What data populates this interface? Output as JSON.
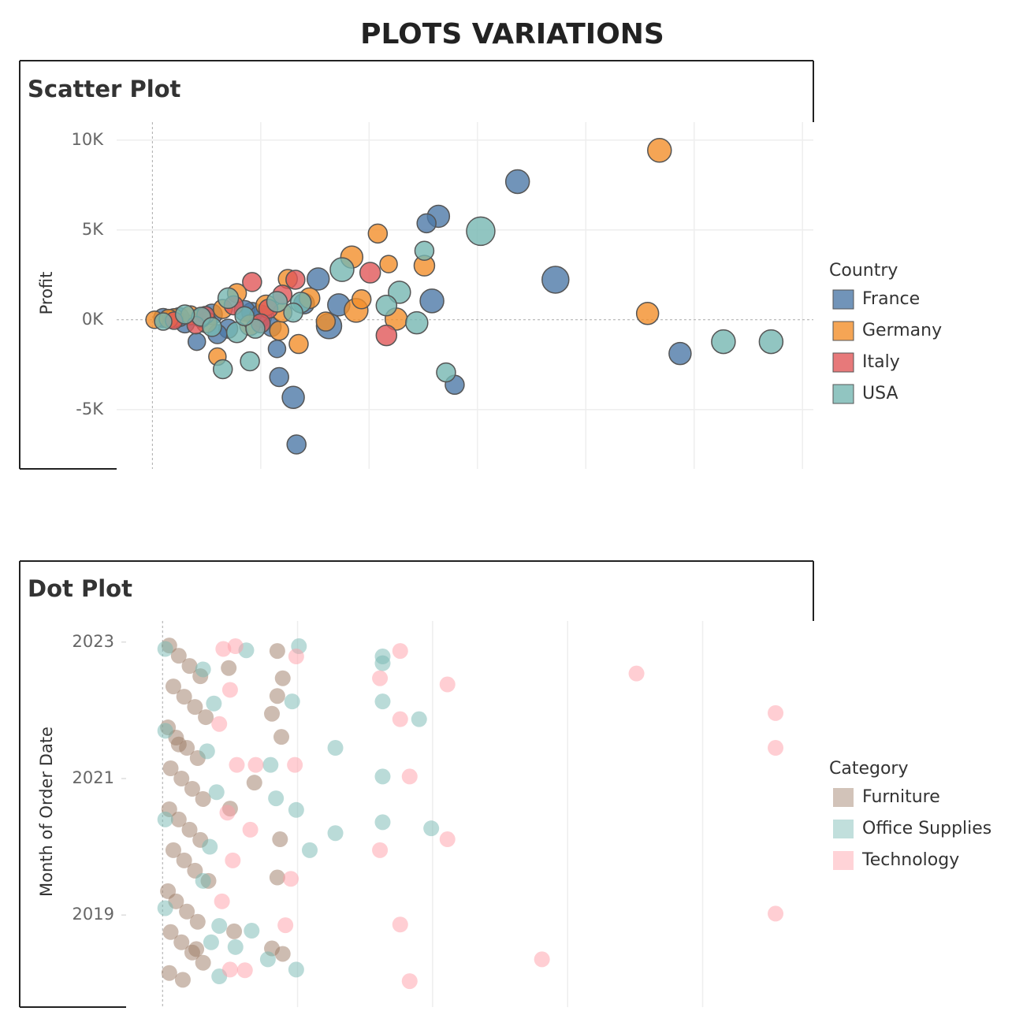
{
  "title": "PLOTS VARIATIONS",
  "chart_data": [
    {
      "type": "scatter",
      "title": "Scatter Plot",
      "y_label": "Profit",
      "legend_title": "Country",
      "legend": "right",
      "opacity": 0.8,
      "xlim": [
        -0.33,
        6.1
      ],
      "xticks": [
        0,
        1,
        2,
        3,
        4,
        5,
        6
      ],
      "ylim": [
        -8300,
        11000
      ],
      "yticks": [
        {
          "value": 10000,
          "label": "10K"
        },
        {
          "value": 5000,
          "label": "5K"
        },
        {
          "value": 0,
          "label": "0K"
        },
        {
          "value": -5000,
          "label": "-5K"
        }
      ],
      "grid_x": true,
      "grid_y": true,
      "series": [
        {
          "name": "France",
          "color": "#4e79a7",
          "x": [
            3.37,
            2.64,
            2.53,
            3.72,
            2.58,
            4.87,
            2.79,
            1.3,
            1.33,
            1.17,
            1.15,
            1.63,
            1.53,
            0.92,
            0.41,
            1.72,
            0.1,
            0.3,
            0.55,
            0.7,
            0.85,
            1.0,
            1.1,
            1.4,
            0.6,
            0.25
          ],
          "values": [
            7690,
            5760,
            5370,
            2230,
            1050,
            -1880,
            -3620,
            -4320,
            -6940,
            -3190,
            -1620,
            -350,
            2270,
            390,
            -1220,
            830,
            100,
            -200,
            300,
            -500,
            500,
            200,
            -400,
            900,
            -800,
            150
          ],
          "sizes": [
            15,
            14,
            12,
            17,
            15,
            14,
            12,
            14,
            12,
            12,
            11,
            16,
            14,
            13,
            11,
            14,
            12,
            12,
            13,
            12,
            13,
            14,
            12,
            13,
            12,
            12
          ]
        },
        {
          "name": "Germany",
          "color": "#f28e2b",
          "x": [
            4.68,
            4.57,
            2.08,
            2.18,
            2.51,
            1.84,
            1.88,
            1.93,
            2.25,
            1.35,
            1.17,
            0.6,
            0.2,
            0.02,
            0.78,
            1.25,
            0.15,
            0.35,
            0.5,
            0.65,
            0.9,
            1.05,
            1.2,
            1.45,
            0.45,
            1.6
          ],
          "values": [
            9430,
            350,
            4800,
            3100,
            3010,
            3490,
            520,
            1140,
            40,
            -1350,
            -610,
            -2050,
            90,
            0,
            1480,
            2270,
            50,
            250,
            -150,
            600,
            -300,
            800,
            400,
            1200,
            100,
            -100
          ],
          "sizes": [
            15,
            14,
            12,
            11,
            13,
            14,
            15,
            12,
            14,
            12,
            12,
            11,
            12,
            11,
            12,
            12,
            12,
            12,
            13,
            12,
            13,
            13,
            12,
            13,
            12,
            12
          ]
        },
        {
          "name": "Italy",
          "color": "#e15759",
          "x": [
            2.16,
            2.01,
            1.32,
            1.07,
            0.49,
            0.92,
            0.2,
            0.4,
            0.75,
            1.0,
            1.2
          ],
          "values": [
            -870,
            2620,
            2230,
            610,
            260,
            2100,
            -50,
            -300,
            800,
            -200,
            1400
          ],
          "sizes": [
            13,
            13,
            12,
            12,
            11,
            12,
            11,
            11,
            12,
            12,
            12
          ]
        },
        {
          "name": "USA",
          "color": "#76b7b2",
          "x": [
            3.03,
            2.51,
            2.28,
            1.75,
            2.16,
            2.44,
            2.71,
            5.27,
            5.71,
            0.9,
            0.65,
            1.37,
            0.45,
            0.78,
            0.1,
            0.3,
            0.55,
            0.7,
            0.95,
            1.15,
            1.3,
            0.85
          ],
          "values": [
            4930,
            3840,
            1530,
            2790,
            790,
            -170,
            -2930,
            -1220,
            -1220,
            -2310,
            -2750,
            960,
            170,
            -700,
            -100,
            300,
            -400,
            1200,
            -500,
            1000,
            400,
            200
          ],
          "sizes": [
            18,
            12,
            14,
            15,
            13,
            14,
            12,
            15,
            15,
            12,
            12,
            13,
            12,
            13,
            11,
            12,
            12,
            13,
            12,
            13,
            12,
            12
          ]
        }
      ]
    },
    {
      "type": "scatter",
      "title": "Dot Plot",
      "y_label": "Month of Order Date",
      "legend_title": "Category",
      "legend": "right",
      "opacity": 0.5,
      "xlim": [
        -0.27,
        4.82
      ],
      "xticks": [
        0,
        1,
        2,
        3,
        4
      ],
      "ylim": [
        2017.65,
        2023.31
      ],
      "yticks": [
        2023,
        2021,
        2019
      ],
      "grid_x": true,
      "grid_y": false,
      "series": [
        {
          "name": "Furniture",
          "color": "#9c7a64",
          "x": [
            0.05,
            0.12,
            0.2,
            0.28,
            0.08,
            0.16,
            0.24,
            0.32,
            0.04,
            0.1,
            0.18,
            0.26,
            0.06,
            0.14,
            0.22,
            0.3,
            0.05,
            0.12,
            0.2,
            0.28,
            0.08,
            0.16,
            0.24,
            0.34,
            0.04,
            0.1,
            0.18,
            0.26,
            0.06,
            0.14,
            0.22,
            0.3,
            0.05,
            0.15,
            0.25,
            0.12,
            0.85,
            0.89,
            0.85,
            0.81,
            0.88,
            0.68,
            0.87,
            0.85,
            0.49,
            0.53,
            0.89,
            0.81,
            0.5
          ],
          "values": [
            2022.95,
            2022.8,
            2022.65,
            2022.5,
            2022.35,
            2022.2,
            2022.05,
            2021.9,
            2021.75,
            2021.6,
            2021.45,
            2021.3,
            2021.15,
            2021.0,
            2020.85,
            2020.7,
            2020.55,
            2020.4,
            2020.25,
            2020.1,
            2019.95,
            2019.8,
            2019.65,
            2019.5,
            2019.35,
            2019.2,
            2019.05,
            2018.9,
            2018.75,
            2018.6,
            2018.45,
            2018.3,
            2018.15,
            2018.05,
            2018.5,
            2021.5,
            2022.87,
            2022.47,
            2022.21,
            2021.95,
            2021.61,
            2020.94,
            2020.11,
            2019.55,
            2022.62,
            2018.76,
            2018.43,
            2018.51,
            2020.56
          ]
        },
        {
          "name": "Office Supplies",
          "color": "#76b7b2",
          "x": [
            1.01,
            1.63,
            1.63,
            1.63,
            1.9,
            1.28,
            1.63,
            0.84,
            0.99,
            1.63,
            1.99,
            1.28,
            1.09,
            0.66,
            0.78,
            0.99,
            0.62,
            0.96,
            0.54,
            0.42,
            0.8,
            0.02,
            0.3,
            0.38,
            0.02,
            0.33,
            0.4,
            0.02,
            0.35,
            0.3,
            0.02,
            0.36,
            0.42
          ],
          "values": [
            2022.94,
            2022.79,
            2022.69,
            2022.13,
            2021.87,
            2021.45,
            2021.03,
            2020.71,
            2020.54,
            2020.36,
            2020.27,
            2020.2,
            2019.95,
            2018.77,
            2018.35,
            2018.2,
            2022.88,
            2022.13,
            2018.53,
            2018.84,
            2021.2,
            2022.9,
            2022.6,
            2022.1,
            2021.7,
            2021.4,
            2020.8,
            2020.4,
            2020.0,
            2019.5,
            2019.1,
            2018.6,
            2018.1
          ]
        },
        {
          "name": "Technology",
          "color": "#ff9da7",
          "x": [
            1.76,
            3.51,
            1.61,
            2.11,
            1.76,
            4.54,
            4.54,
            1.83,
            2.11,
            1.61,
            4.54,
            1.76,
            2.81,
            1.83,
            0.99,
            0.98,
            0.95,
            0.61,
            0.69,
            0.54,
            0.91,
            0.65,
            0.45,
            0.5,
            0.42,
            0.55,
            0.48,
            0.52,
            0.44,
            0.5
          ],
          "values": [
            2022.87,
            2022.54,
            2022.47,
            2022.38,
            2021.87,
            2021.96,
            2021.45,
            2021.03,
            2020.11,
            2019.95,
            2019.02,
            2018.86,
            2018.35,
            2018.03,
            2022.79,
            2021.2,
            2019.53,
            2018.19,
            2021.2,
            2022.94,
            2018.85,
            2020.25,
            2022.9,
            2022.3,
            2021.8,
            2021.2,
            2020.5,
            2019.8,
            2019.2,
            2018.2
          ]
        }
      ]
    }
  ]
}
